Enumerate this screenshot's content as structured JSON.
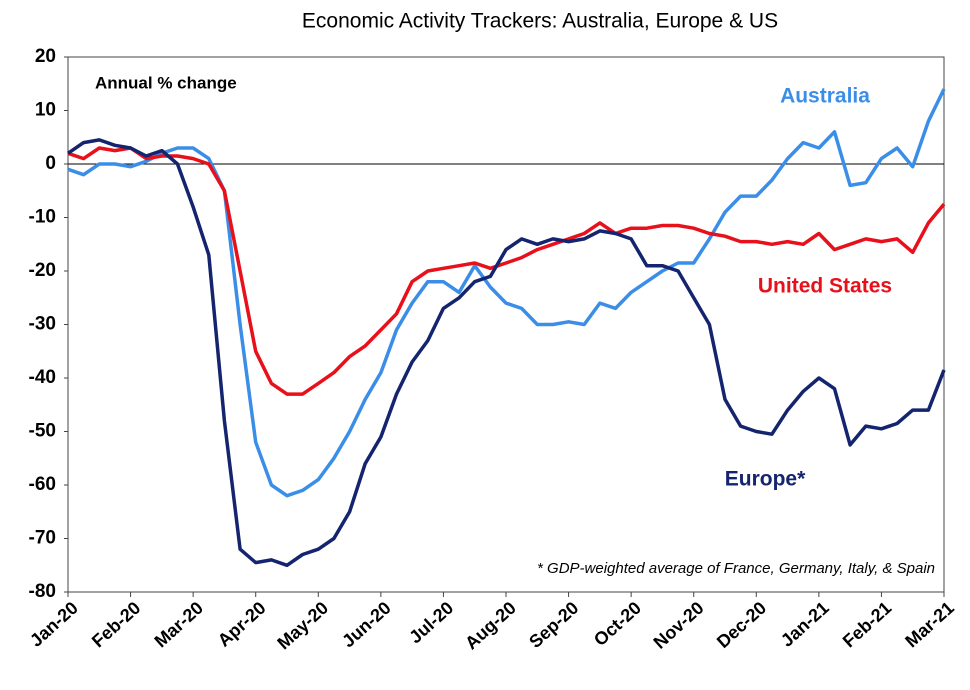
{
  "chart_data": {
    "type": "line",
    "title": "Economic Activity Trackers: Australia, Europe & US",
    "y_axis_label": "Annual % change",
    "footnote": "* GDP-weighted average of France, Germany, Italy, & Spain",
    "categories": [
      "Jan-20",
      null,
      null,
      null,
      "Feb-20",
      null,
      null,
      null,
      "Mar-20",
      null,
      null,
      null,
      "Apr-20",
      null,
      null,
      null,
      "May-20",
      null,
      null,
      null,
      "Jun-20",
      null,
      null,
      null,
      "Jul-20",
      null,
      null,
      null,
      "Aug-20",
      null,
      null,
      null,
      "Sep-20",
      null,
      null,
      null,
      "Oct-20",
      null,
      null,
      null,
      "Nov-20",
      null,
      null,
      null,
      "Dec-20",
      null,
      null,
      null,
      "Jan-21",
      null,
      null,
      null,
      "Feb-21",
      null,
      null,
      null,
      "Mar-21"
    ],
    "ylim": [
      -80,
      20
    ],
    "yticks": [
      -80,
      -70,
      -60,
      -50,
      -40,
      -30,
      -20,
      -10,
      0,
      10,
      20
    ],
    "series": [
      {
        "name": "Australia",
        "color": "#3b8ee8",
        "values": [
          -1,
          -2,
          0,
          0,
          -0.5,
          0.5,
          2,
          3,
          3,
          1,
          -5,
          -30,
          -52,
          -60,
          -62,
          -61,
          -59,
          -55,
          -50,
          -44,
          -39,
          -31,
          -26,
          -22,
          -22,
          -24,
          -19,
          -23,
          -26,
          -27,
          -30,
          -30,
          -29.5,
          -30,
          -26,
          -27,
          -24,
          -22,
          -20,
          -18.5,
          -18.5,
          -14,
          -9,
          -6,
          -6,
          -3,
          1,
          4,
          3,
          6,
          -4,
          -3.5,
          1,
          3,
          -0.5,
          8,
          14
        ]
      },
      {
        "name": "United States",
        "color": "#e8101a",
        "values": [
          2,
          1,
          3,
          2.5,
          3,
          1,
          1.5,
          1.5,
          1,
          0,
          -5,
          -20,
          -35,
          -41,
          -43,
          -43,
          -41,
          -39,
          -36,
          -34,
          -31,
          -28,
          -22,
          -20,
          -19.5,
          -19,
          -18.5,
          -19.5,
          -18.5,
          -17.5,
          -16,
          -15,
          -14,
          -13,
          -11,
          -13,
          -12,
          -12,
          -11.5,
          -11.5,
          -12,
          -13,
          -13.5,
          -14.5,
          -14.5,
          -15,
          -14.5,
          -15,
          -13,
          -16,
          -15,
          -14,
          -14.5,
          -14,
          -16.5,
          -11,
          -7.5
        ]
      },
      {
        "name": "Europe*",
        "color": "#14246e",
        "values": [
          2,
          4,
          4.5,
          3.5,
          3,
          1.5,
          2.5,
          0,
          -8,
          -17,
          -48,
          -72,
          -74.5,
          -74,
          -75,
          -73,
          -72,
          -70,
          -65,
          -56,
          -51,
          -43,
          -37,
          -33,
          -27,
          -25,
          -22,
          -21,
          -16,
          -14,
          -15,
          -14,
          -14.5,
          -14,
          -12.5,
          -13,
          -14,
          -19,
          -19,
          -20,
          -25,
          -30,
          -44,
          -49,
          -50,
          -50.5,
          -46,
          -42.5,
          -40,
          -42,
          -52.5,
          -49,
          -49.5,
          -48.5,
          -46,
          -46,
          -38.5
        ]
      }
    ]
  }
}
